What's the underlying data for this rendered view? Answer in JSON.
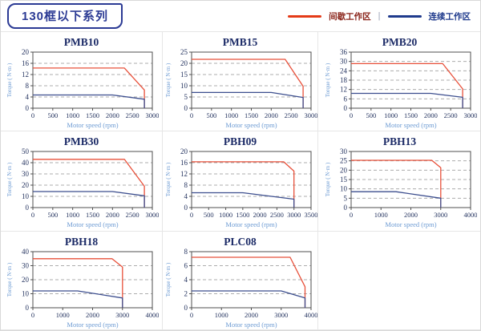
{
  "header": {
    "title": "130框以下系列",
    "legend_separator": "|",
    "legend": [
      {
        "label": "间歇工作区",
        "swatch_color": "#e43a17",
        "label_color": "#8a241a"
      },
      {
        "label": "连续工作区",
        "swatch_color": "#1f3a8c",
        "label_color": "#1f3a8c"
      }
    ]
  },
  "colors": {
    "intermittent_line": "#e8503a",
    "continuous_line": "#3c4e8e",
    "plot_frame": "#4f4f4f",
    "gridline": "#adadad",
    "tick_text": "#24335f",
    "axis_label_text": "#6d9bd3",
    "chart_title_text": "#1b2a66",
    "badge_blue": "#2b3a94"
  },
  "chart_data": [
    {
      "type": "line",
      "title": "PMB10",
      "xlabel": "Motor speed (rpm)",
      "ylabel": "Torque ( N·m )",
      "xlim": [
        0,
        3000
      ],
      "ylim": [
        0,
        20
      ],
      "xticks": [
        0,
        500,
        1000,
        1500,
        2000,
        2500,
        3000
      ],
      "yticks": [
        0,
        4,
        8,
        12,
        16,
        20
      ],
      "grid": "horizontal-dashed",
      "legend_position": "none",
      "series": [
        {
          "name": "间歇工作区",
          "color_key": "intermittent_line",
          "points": [
            [
              0,
              14.3
            ],
            [
              2300,
              14.3
            ],
            [
              2800,
              6.5
            ],
            [
              2800,
              0
            ]
          ]
        },
        {
          "name": "连续工作区",
          "color_key": "continuous_line",
          "points": [
            [
              0,
              4.7
            ],
            [
              2000,
              4.7
            ],
            [
              2800,
              3.2
            ],
            [
              2800,
              0
            ]
          ]
        }
      ]
    },
    {
      "type": "line",
      "title": "PMB15",
      "xlabel": "Motor speed (rpm)",
      "ylabel": "Torque ( N·m )",
      "xlim": [
        0,
        3000
      ],
      "ylim": [
        0,
        25
      ],
      "xticks": [
        0,
        500,
        1000,
        1500,
        2000,
        2500,
        3000
      ],
      "yticks": [
        0,
        5,
        10,
        15,
        20,
        25
      ],
      "grid": "horizontal-dashed",
      "legend_position": "none",
      "series": [
        {
          "name": "间歇工作区",
          "color_key": "intermittent_line",
          "points": [
            [
              0,
              21.8
            ],
            [
              2350,
              21.8
            ],
            [
              2800,
              9.8
            ],
            [
              2800,
              0
            ]
          ]
        },
        {
          "name": "连续工作区",
          "color_key": "continuous_line",
          "points": [
            [
              0,
              7
            ],
            [
              2000,
              7
            ],
            [
              2800,
              4.8
            ],
            [
              2800,
              0
            ]
          ]
        }
      ]
    },
    {
      "type": "line",
      "title": "PMB20",
      "xlabel": "Motor speed (rpm)",
      "ylabel": "Torque ( N·m )",
      "xlim": [
        0,
        3000
      ],
      "ylim": [
        0,
        36
      ],
      "xticks": [
        0,
        500,
        1000,
        1500,
        2000,
        2500,
        3000
      ],
      "yticks": [
        0,
        6,
        12,
        18,
        24,
        30,
        36
      ],
      "grid": "horizontal-dashed",
      "legend_position": "none",
      "series": [
        {
          "name": "间歇工作区",
          "color_key": "intermittent_line",
          "points": [
            [
              0,
              28.6
            ],
            [
              2300,
              28.6
            ],
            [
              2800,
              12.4
            ],
            [
              2800,
              0
            ]
          ]
        },
        {
          "name": "连续工作区",
          "color_key": "continuous_line",
          "points": [
            [
              0,
              9.5
            ],
            [
              2000,
              9.5
            ],
            [
              2800,
              7
            ],
            [
              2800,
              0
            ]
          ]
        }
      ]
    },
    {
      "type": "line",
      "title": "PMB30",
      "xlabel": "Motor speed (rpm)",
      "ylabel": "Torque ( N·m )",
      "xlim": [
        0,
        3000
      ],
      "ylim": [
        0,
        50
      ],
      "xticks": [
        0,
        500,
        1000,
        1500,
        2000,
        2500,
        3000
      ],
      "yticks": [
        0,
        10,
        20,
        30,
        40,
        50
      ],
      "grid": "horizontal-dashed",
      "legend_position": "none",
      "series": [
        {
          "name": "间歇工作区",
          "color_key": "intermittent_line",
          "points": [
            [
              0,
              43
            ],
            [
              2300,
              43
            ],
            [
              2800,
              19
            ],
            [
              2800,
              0
            ]
          ]
        },
        {
          "name": "连续工作区",
          "color_key": "continuous_line",
          "points": [
            [
              0,
              14.3
            ],
            [
              2000,
              14.3
            ],
            [
              2800,
              10.5
            ],
            [
              2800,
              0
            ]
          ]
        }
      ]
    },
    {
      "type": "line",
      "title": "PBH09",
      "xlabel": "Motor speed (rpm)",
      "ylabel": "Torque ( N·m )",
      "xlim": [
        0,
        3500
      ],
      "ylim": [
        0,
        20
      ],
      "xticks": [
        0,
        500,
        1000,
        1500,
        2000,
        2500,
        3000,
        3500
      ],
      "yticks": [
        0,
        4,
        8,
        12,
        16,
        20
      ],
      "grid": "horizontal-dashed",
      "legend_position": "none",
      "series": [
        {
          "name": "间歇工作区",
          "color_key": "intermittent_line",
          "points": [
            [
              0,
              16.3
            ],
            [
              2700,
              16.3
            ],
            [
              3000,
              13
            ],
            [
              3000,
              0
            ]
          ]
        },
        {
          "name": "连续工作区",
          "color_key": "continuous_line",
          "points": [
            [
              0,
              5.3
            ],
            [
              1500,
              5.3
            ],
            [
              3000,
              3
            ],
            [
              3000,
              0
            ]
          ]
        }
      ]
    },
    {
      "type": "line",
      "title": "PBH13",
      "xlabel": "Motor speed (rpm)",
      "ylabel": "Torque ( N·m )",
      "xlim": [
        0,
        4000
      ],
      "ylim": [
        0,
        30
      ],
      "xticks": [
        0,
        1000,
        2000,
        3000,
        4000
      ],
      "yticks": [
        0,
        5,
        10,
        15,
        20,
        25,
        30
      ],
      "grid": "horizontal-dashed",
      "legend_position": "none",
      "series": [
        {
          "name": "间歇工作区",
          "color_key": "intermittent_line",
          "points": [
            [
              0,
              25.3
            ],
            [
              2700,
              25.3
            ],
            [
              3000,
              21.3
            ],
            [
              3000,
              0
            ]
          ]
        },
        {
          "name": "连续工作区",
          "color_key": "continuous_line",
          "points": [
            [
              0,
              8.5
            ],
            [
              1500,
              8.5
            ],
            [
              3000,
              5
            ],
            [
              3000,
              0
            ]
          ]
        }
      ]
    },
    {
      "type": "line",
      "title": "PBH18",
      "xlabel": "Motor speed (rpm)",
      "ylabel": "Torque ( N·m )",
      "xlim": [
        0,
        4000
      ],
      "ylim": [
        0,
        40
      ],
      "xticks": [
        0,
        1000,
        2000,
        3000,
        4000
      ],
      "yticks": [
        0,
        10,
        20,
        30,
        40
      ],
      "grid": "horizontal-dashed",
      "legend_position": "none",
      "series": [
        {
          "name": "间歇工作区",
          "color_key": "intermittent_line",
          "points": [
            [
              0,
              35
            ],
            [
              2650,
              35
            ],
            [
              3000,
              29
            ],
            [
              3000,
              0
            ]
          ]
        },
        {
          "name": "连续工作区",
          "color_key": "continuous_line",
          "points": [
            [
              0,
              12
            ],
            [
              1500,
              12
            ],
            [
              3000,
              7
            ],
            [
              3000,
              0
            ]
          ]
        }
      ]
    },
    {
      "type": "line",
      "title": "PLC08",
      "xlabel": "Motor speed (rpm)",
      "ylabel": "Torque ( N·m )",
      "xlim": [
        0,
        4000
      ],
      "ylim": [
        0,
        8
      ],
      "xticks": [
        0,
        1000,
        2000,
        3000,
        4000
      ],
      "yticks": [
        0,
        2,
        4,
        6,
        8
      ],
      "grid": "horizontal-dashed",
      "legend_position": "none",
      "series": [
        {
          "name": "间歇工作区",
          "color_key": "intermittent_line",
          "points": [
            [
              0,
              7.2
            ],
            [
              3300,
              7.2
            ],
            [
              3800,
              3
            ],
            [
              3800,
              0
            ]
          ]
        },
        {
          "name": "连续工作区",
          "color_key": "continuous_line",
          "points": [
            [
              0,
              2.4
            ],
            [
              3000,
              2.4
            ],
            [
              3800,
              1.4
            ],
            [
              3800,
              0
            ]
          ]
        }
      ]
    }
  ]
}
